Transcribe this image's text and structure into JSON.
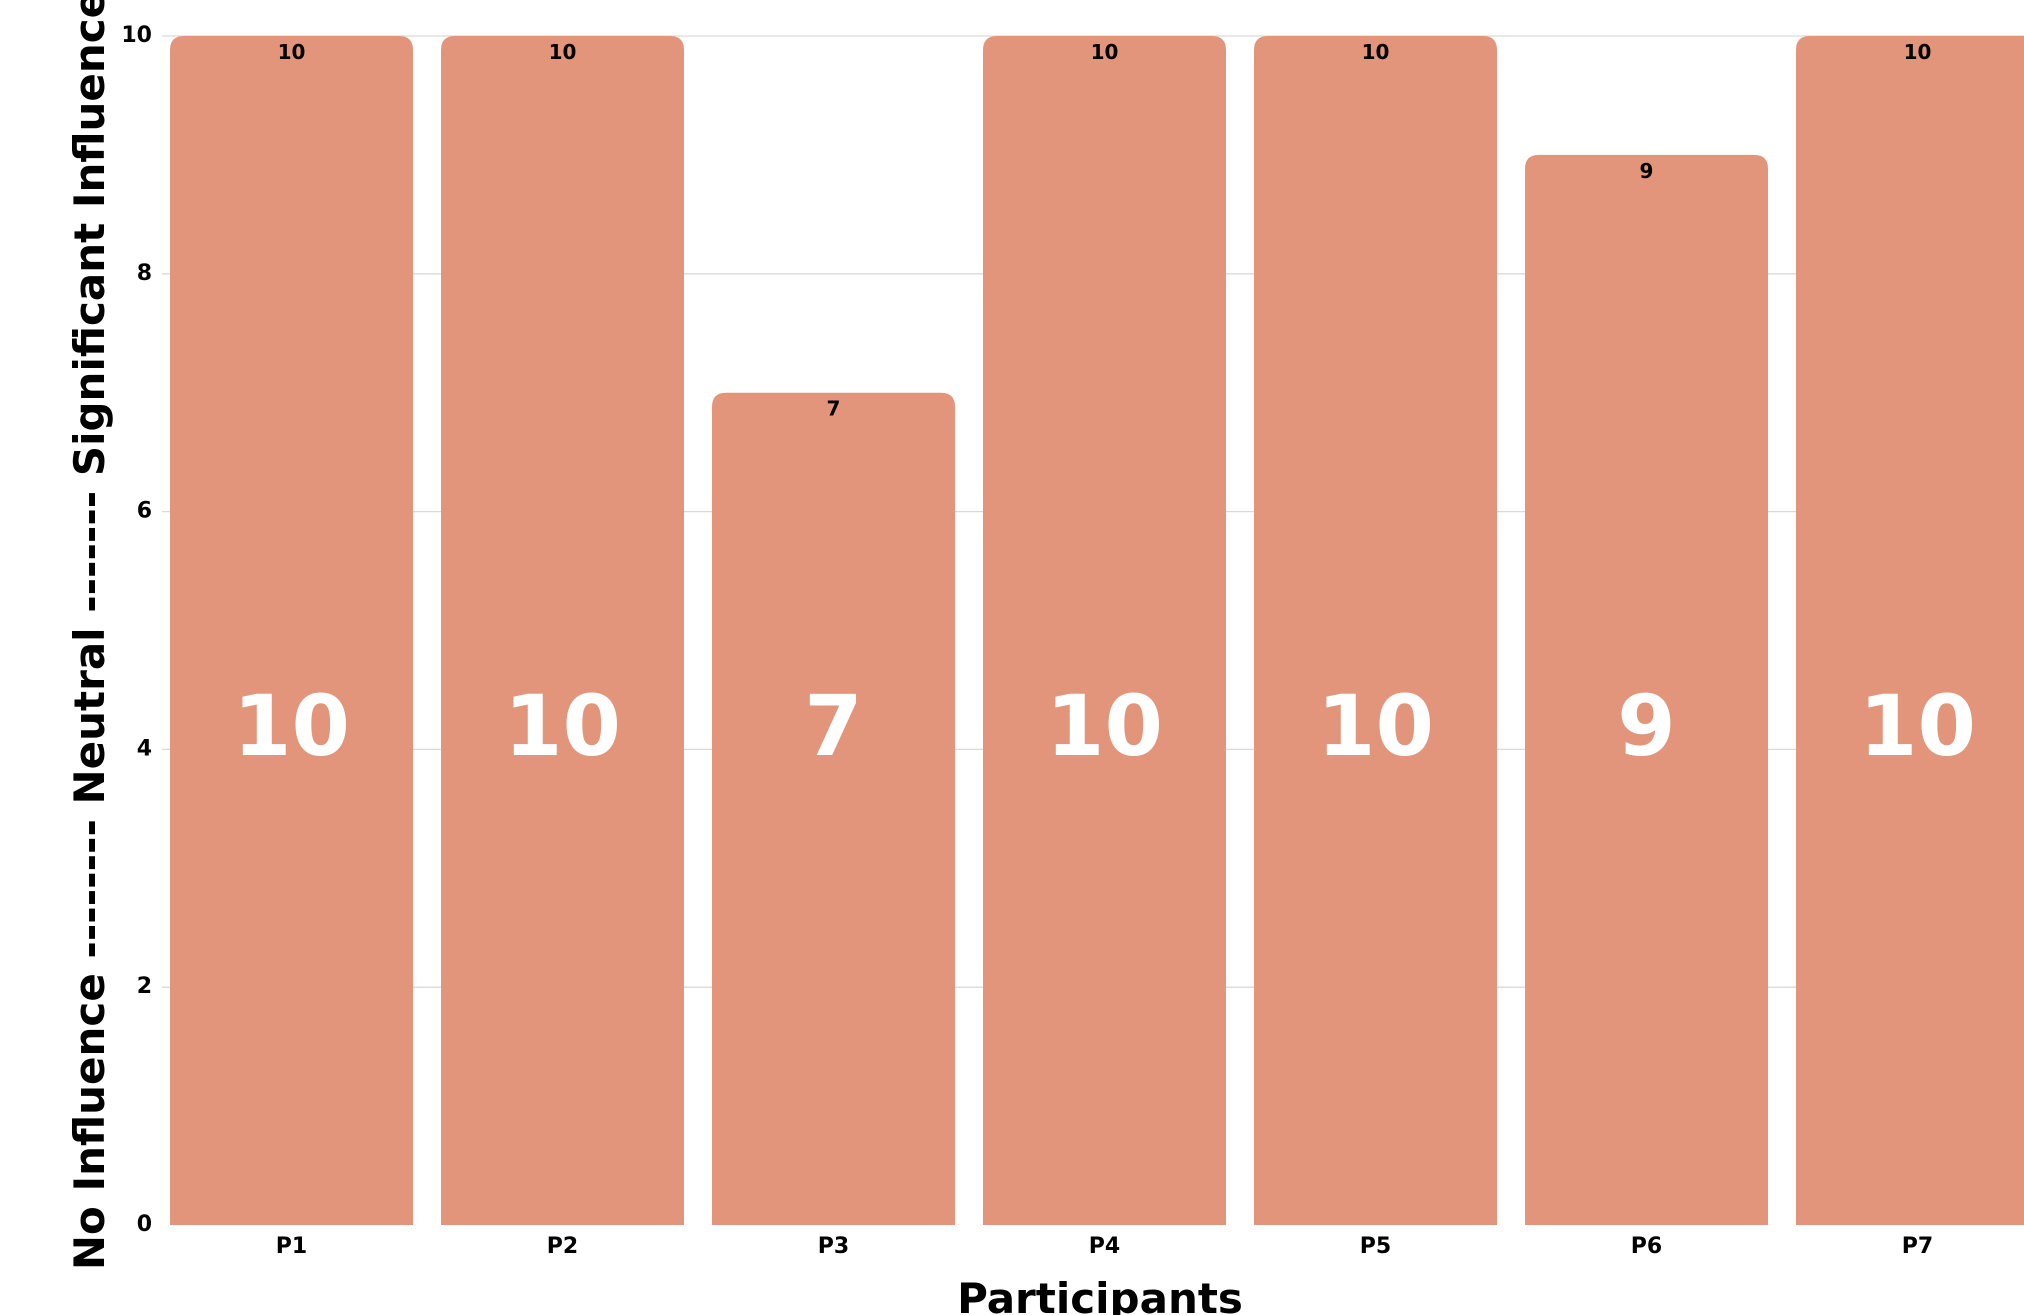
{
  "chart_data": {
    "type": "bar",
    "title": "",
    "xlabel": "Participants",
    "ylabel": "No Influence -------- Neutral ------- Significant Influence",
    "categories": [
      "P1",
      "P2",
      "P3",
      "P4",
      "P5",
      "P6",
      "P7"
    ],
    "values": [
      10,
      10,
      7,
      10,
      10,
      9,
      10
    ],
    "ylim": [
      0,
      10
    ],
    "yticks": [
      0,
      2,
      4,
      6,
      8,
      10
    ],
    "grid": true,
    "colors": {
      "bar": "#e2957b",
      "inner_label": "#ffffff",
      "grid": "#d9d9d9"
    }
  }
}
